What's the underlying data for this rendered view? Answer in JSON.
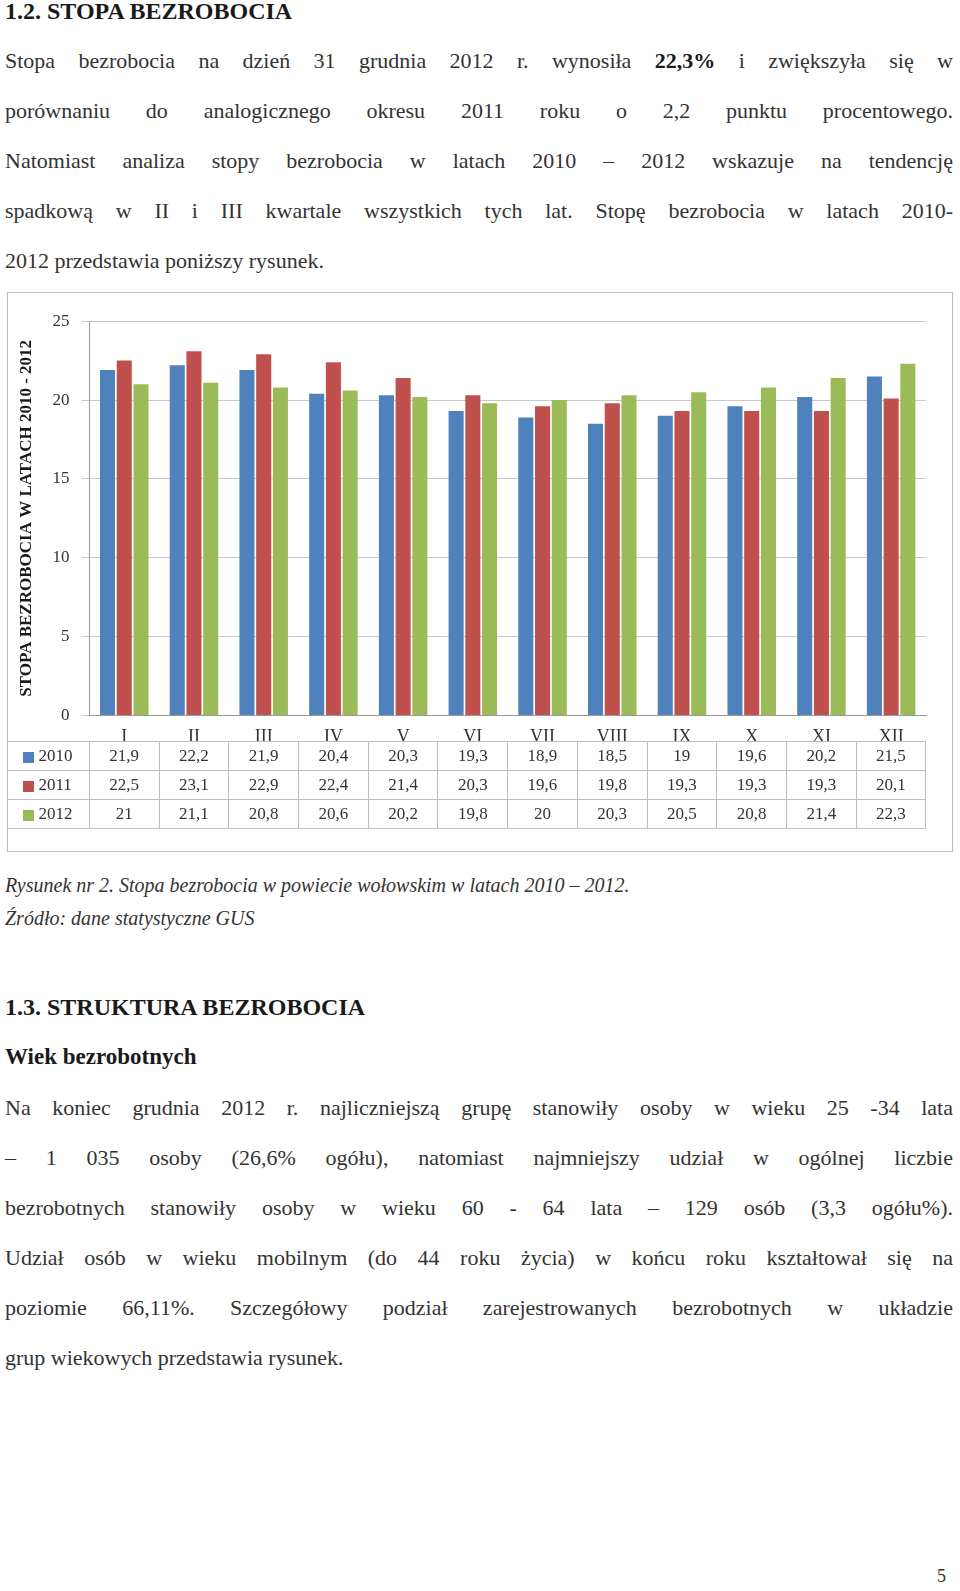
{
  "section_1_2": {
    "heading": "1.2. STOPA BEZROBOCIA",
    "paragraph": [
      [
        {
          "text": "Stopa bezrobocia na dzień 31 grudnia 2012 r. wynosiła ",
          "bold": false
        },
        {
          "text": "22,3%",
          "bold": true
        },
        {
          "text": " i zwiększyła się w",
          "bold": false
        }
      ],
      "porównaniu do analogicznego okresu 2011 roku o 2,2 punktu procentowego.",
      "Natomiast analiza stopy bezrobocia w latach 2010 – 2012 wskazuje na tendencję",
      "spadkową w II i III kwartale wszystkich tych lat. Stopę bezrobocia w latach 2010-",
      "2012 przedstawia poniższy rysunek."
    ]
  },
  "chart_data": {
    "type": "bar",
    "y_label": "STOPA BEZROBOCIA W LATACH 2010 - 2012",
    "categories": [
      "I",
      "II",
      "III",
      "IV",
      "V",
      "VI",
      "VII",
      "VIII",
      "IX",
      "X",
      "XI",
      "XII"
    ],
    "series": [
      {
        "name": "2010",
        "color": "#4f81bd",
        "values": [
          21.9,
          22.2,
          21.9,
          20.4,
          20.3,
          19.3,
          18.9,
          18.5,
          19,
          19.6,
          20.2,
          21.5
        ],
        "value_labels": [
          "21,9",
          "22,2",
          "21,9",
          "20,4",
          "20,3",
          "19,3",
          "18,9",
          "18,5",
          "19",
          "19,6",
          "20,2",
          "21,5"
        ]
      },
      {
        "name": "2011",
        "color": "#c0504d",
        "values": [
          22.5,
          23.1,
          22.9,
          22.4,
          21.4,
          20.3,
          19.6,
          19.8,
          19.3,
          19.3,
          19.3,
          20.1
        ],
        "value_labels": [
          "22,5",
          "23,1",
          "22,9",
          "22,4",
          "21,4",
          "20,3",
          "19,6",
          "19,8",
          "19,3",
          "19,3",
          "19,3",
          "20,1"
        ]
      },
      {
        "name": "2012",
        "color": "#9bbb59",
        "values": [
          21,
          21.1,
          20.8,
          20.6,
          20.2,
          19.8,
          20,
          20.3,
          20.5,
          20.8,
          21.4,
          22.3
        ],
        "value_labels": [
          "21",
          "21,1",
          "20,8",
          "20,6",
          "20,2",
          "19,8",
          "20",
          "20,3",
          "20,5",
          "20,8",
          "21,4",
          "22,3"
        ]
      }
    ],
    "ylim": [
      0,
      25
    ],
    "yticks": [
      0,
      5,
      10,
      15,
      20,
      25
    ],
    "grid": true
  },
  "caption": [
    "Rysunek nr 2. Stopa bezrobocia w powiecie wołowskim w latach 2010 – 2012.",
    "Źródło: dane statystyczne GUS"
  ],
  "section_1_3": {
    "heading": "1.3. STRUKTURA BEZROBOCIA",
    "subheading": "Wiek bezrobotnych",
    "paragraph": [
      "Na koniec grudnia 2012 r. najliczniejszą grupę stanowiły osoby w wieku 25 -34 lata",
      "– 1 035 osoby (26,6% ogółu), natomiast najmniejszy udział w ogólnej liczbie",
      "bezrobotnych stanowiły osoby w wieku 60 - 64 lata – 129 osób (3,3 ogółu%).",
      "Udział osób w wieku mobilnym (do 44 roku życia) w końcu roku kształtował się na",
      "poziomie 66,11%. Szczegółowy podział zarejestrowanych bezrobotnych w układzie",
      "grup wiekowych przedstawia rysunek."
    ]
  },
  "page_number": "5"
}
